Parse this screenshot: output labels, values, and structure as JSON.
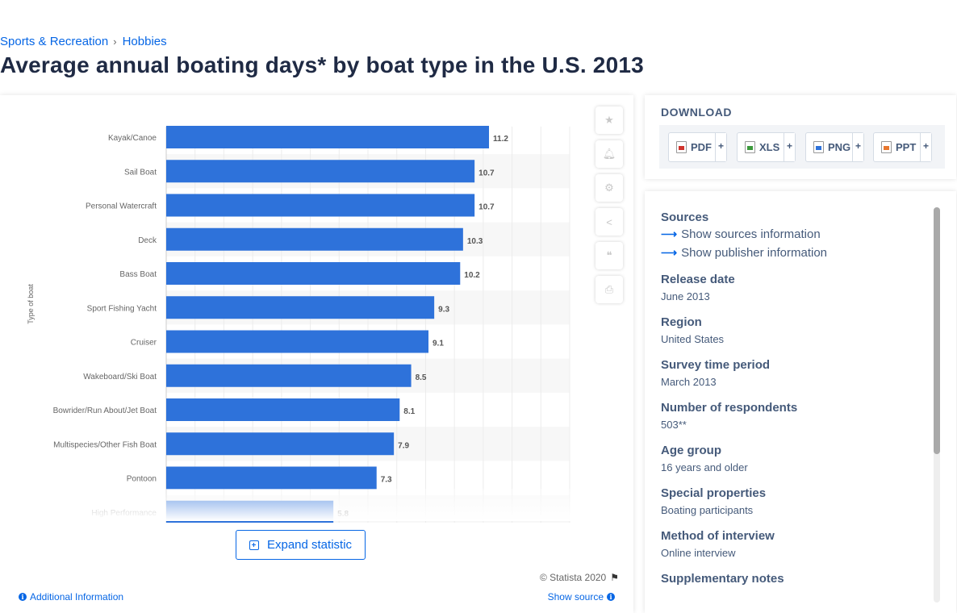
{
  "breadcrumb": {
    "items": [
      "Sports & Recreation",
      "Hobbies"
    ],
    "separator": "›"
  },
  "page_title": "Average annual boating days* by boat type in the U.S. 2013",
  "chart_data": {
    "type": "bar",
    "orientation": "horizontal",
    "categories": [
      "Kayak/Canoe",
      "Sail Boat",
      "Personal Watercraft",
      "Deck",
      "Bass Boat",
      "Sport Fishing Yacht",
      "Cruiser",
      "Wakeboard/Ski Boat",
      "Bowrider/Run About/Jet Boat",
      "Multispecies/Other Fish Boat",
      "Pontoon",
      "High Performance"
    ],
    "values": [
      11.2,
      10.7,
      10.7,
      10.3,
      10.2,
      9.3,
      9.1,
      8.5,
      8.1,
      7.9,
      7.3,
      5.8
    ],
    "value_labels": [
      "11.2",
      "10.7",
      "10.7",
      "10.3",
      "10.2",
      "9.3",
      "9.1",
      "8.5",
      "8.1",
      "7.9",
      "7.3",
      "5.8"
    ],
    "ylabel": "Type of boat",
    "xlim": [
      0,
      14
    ],
    "bar_color": "#2e72da",
    "grid": true,
    "alternating_row_shading": true
  },
  "chart_tools": {
    "icons": [
      "star-icon",
      "bell-icon",
      "gear-icon",
      "share-icon",
      "quote-icon",
      "print-icon"
    ]
  },
  "expand_button": "Expand statistic",
  "copyright": "© Statista 2020",
  "additional_info": "Additional Information",
  "show_source": "Show source",
  "download": {
    "title": "DOWNLOAD",
    "buttons": [
      {
        "label": "PDF",
        "color": "#d0342c"
      },
      {
        "label": "XLS",
        "color": "#3c9a3c"
      },
      {
        "label": "PNG",
        "color": "#2e72da"
      },
      {
        "label": "PPT",
        "color": "#e8772e"
      }
    ],
    "plus": "+"
  },
  "details": {
    "sources_label": "Sources",
    "sources_link": "Show sources information",
    "publisher_link": "Show publisher information",
    "items": [
      {
        "label": "Release date",
        "value": "June 2013"
      },
      {
        "label": "Region",
        "value": "United States"
      },
      {
        "label": "Survey time period",
        "value": "March 2013"
      },
      {
        "label": "Number of respondents",
        "value": "503**"
      },
      {
        "label": "Age group",
        "value": "16 years and older"
      },
      {
        "label": "Special properties",
        "value": "Boating participants"
      },
      {
        "label": "Method of interview",
        "value": "Online interview"
      },
      {
        "label": "Supplementary notes",
        "value": ""
      }
    ]
  },
  "colors": {
    "accent": "#0666e5",
    "title": "#1f2a44",
    "label": "#455a7a"
  }
}
